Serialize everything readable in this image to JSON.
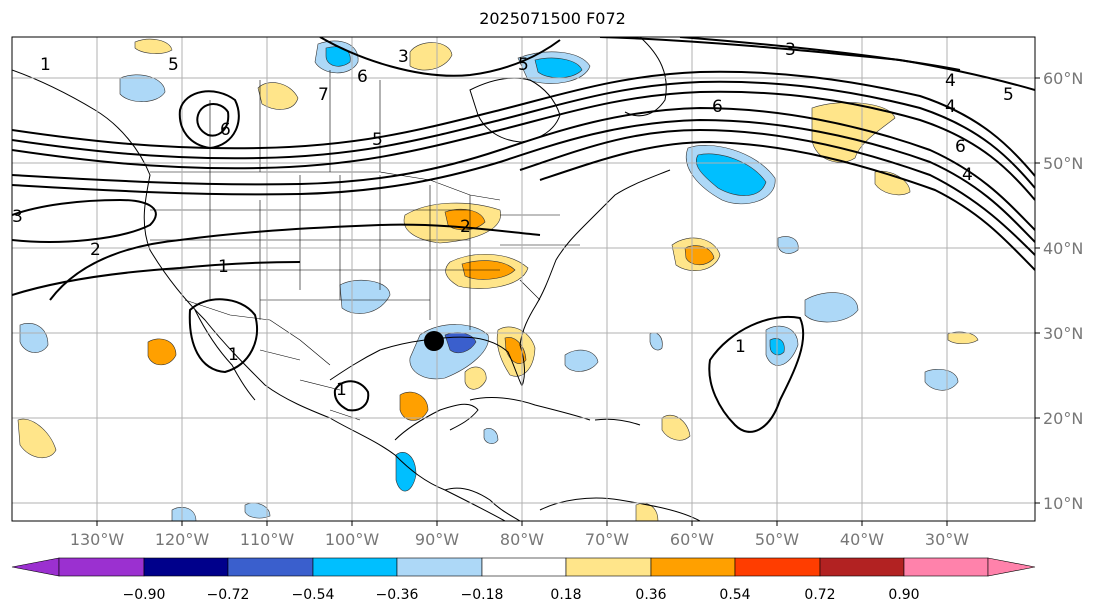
{
  "title": "2025071500 F072",
  "map": {
    "lon_ticks": [
      "130°W",
      "120°W",
      "110°W",
      "100°W",
      "90°W",
      "80°W",
      "70°W",
      "60°W",
      "50°W",
      "40°W",
      "30°W"
    ],
    "lat_ticks": [
      "60°N",
      "50°N",
      "40°N",
      "30°N",
      "20°N",
      "10°N"
    ],
    "contour_labels": [
      "1",
      "2",
      "3",
      "5",
      "6",
      "7",
      "5",
      "6",
      "3",
      "5",
      "6",
      "4",
      "4",
      "5",
      "6",
      "4",
      "3",
      "2",
      "1",
      "1",
      "1",
      "1"
    ],
    "colors": {
      "land_outline": "#000000",
      "grid": "#b0b0b0"
    }
  },
  "colorbar": {
    "ticks": [
      "−0.90",
      "−0.72",
      "−0.54",
      "−0.36",
      "−0.18",
      "0.18",
      "0.36",
      "0.54",
      "0.72",
      "0.90"
    ],
    "colors": [
      "#9b30d0",
      "#00008b",
      "#3a5fcd",
      "#00bfff",
      "#add8f7",
      "#ffffff",
      "#ffe58a",
      "#ffa000",
      "#ff3d00",
      "#b22222",
      "#ff82ab"
    ]
  }
}
